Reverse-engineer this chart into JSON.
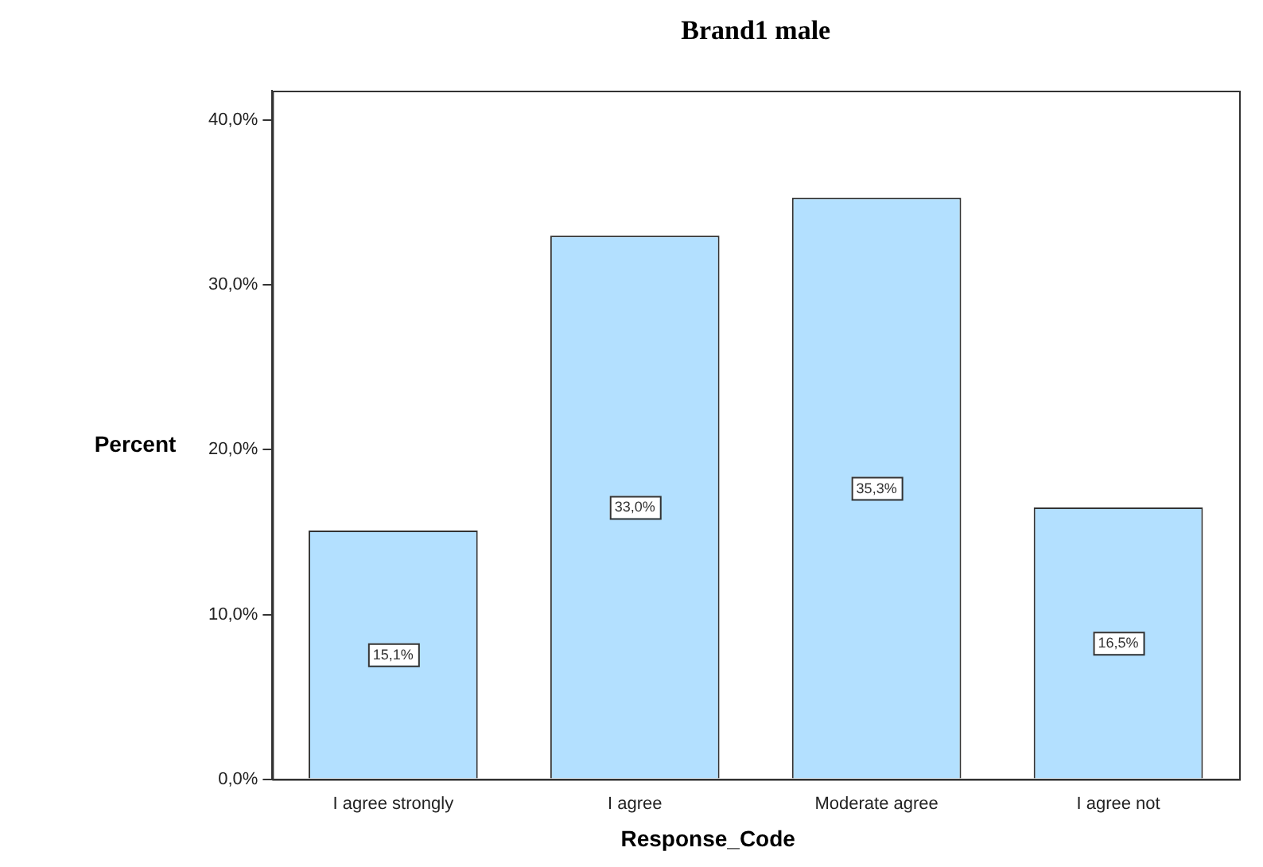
{
  "chart_data": {
    "type": "bar",
    "title": "Brand1 male",
    "xlabel": "Response_Code",
    "ylabel": "Percent",
    "categories": [
      "I agree strongly",
      "I agree",
      "Moderate agree",
      "I agree not"
    ],
    "values": [
      15.1,
      33.0,
      35.3,
      16.5
    ],
    "value_labels": [
      "15,1%",
      "33,0%",
      "35,3%",
      "16,5%"
    ],
    "color": "#b3e0ff",
    "ylim": [
      0,
      41.8
    ],
    "yticks": [
      {
        "value": 0,
        "label": "0,0%"
      },
      {
        "value": 10,
        "label": "10,0%"
      },
      {
        "value": 20,
        "label": "20,0%"
      },
      {
        "value": 30,
        "label": "30,0%"
      },
      {
        "value": 40,
        "label": "40,0%"
      }
    ],
    "grid": false,
    "legend": false
  }
}
